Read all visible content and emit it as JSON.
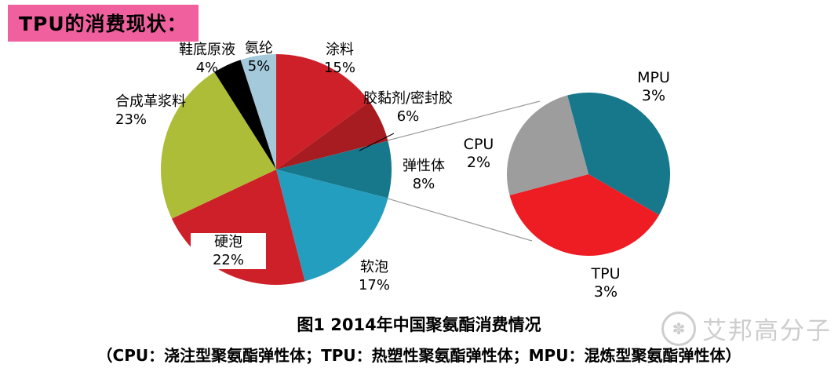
{
  "header": {
    "title": "TPU的消费现状："
  },
  "colors": {
    "title_bg": "#f0609e",
    "connector_line": "#9a9a9a"
  },
  "chart_data": [
    {
      "type": "pie",
      "title": "图1 2014年中国聚氨酯消费情况",
      "start_angle": 0,
      "slices": [
        {
          "label": "涂料",
          "value": 15,
          "pct": "15%",
          "color": "#ce2029"
        },
        {
          "label": "胶黏剂/密封胶",
          "value": 6,
          "pct": "6%",
          "color": "#a61c20"
        },
        {
          "label": "弹性体",
          "value": 8,
          "pct": "8%",
          "color": "#17788c"
        },
        {
          "label": "软泡",
          "value": 17,
          "pct": "17%",
          "color": "#249ebf"
        },
        {
          "label": "硬泡",
          "value": 22,
          "pct": "22%",
          "color": "#ce2029"
        },
        {
          "label": "合成革浆料",
          "value": 23,
          "pct": "23%",
          "color": "#aebd37"
        },
        {
          "label": "鞋底原液",
          "value": 4,
          "pct": "4%",
          "color": "#000000"
        },
        {
          "label": "氨纶",
          "value": 5,
          "pct": "5%",
          "color": "#a3c9db"
        }
      ]
    },
    {
      "type": "pie",
      "start_angle": -15,
      "slices": [
        {
          "label": "MPU",
          "value": 3,
          "pct": "3%",
          "color": "#17788c"
        },
        {
          "label": "TPU",
          "value": 3,
          "pct": "3%",
          "color": "#ee1c23"
        },
        {
          "label": "CPU",
          "value": 2,
          "pct": "2%",
          "color": "#9d9d9d"
        }
      ]
    }
  ],
  "caption": {
    "legend_note": "（CPU：浇注型聚氨酯弹性体；TPU：热塑性聚氨酯弹性体；MPU：混炼型聚氨酯弹性体）"
  },
  "watermark": {
    "icon_glyph": "✽",
    "text": "艾邦高分子"
  }
}
